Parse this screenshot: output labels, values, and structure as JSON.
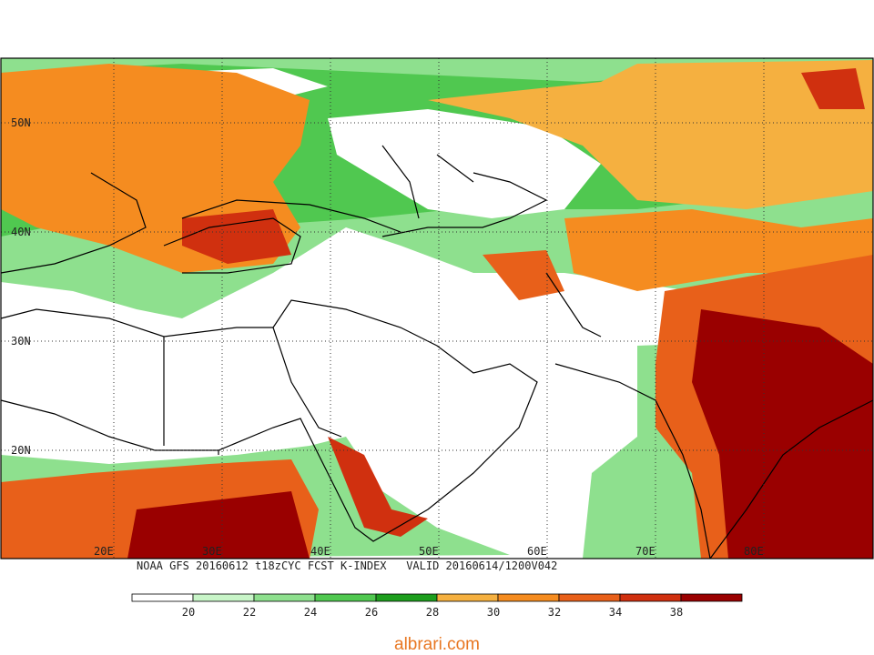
{
  "map": {
    "lat_labels": [
      "50N",
      "40N",
      "30N",
      "20N"
    ],
    "lon_labels": [
      "20E",
      "30E",
      "40E",
      "50E",
      "60E",
      "70E",
      "80E"
    ],
    "caption": "NOAA GFS 20160612 t18zCYC FCST K-INDEX   VALID 20160614/1200V042",
    "colorbar": {
      "colors": [
        "#ffffff",
        "#c8f5c8",
        "#8ee08e",
        "#50c850",
        "#1e9e1e",
        "#f5b040",
        "#f58c20",
        "#e8601a",
        "#d0300f",
        "#9a0000"
      ],
      "labels": [
        "20",
        "22",
        "24",
        "26",
        "28",
        "30",
        "32",
        "34",
        "38"
      ]
    }
  },
  "footer": "albrari.com"
}
